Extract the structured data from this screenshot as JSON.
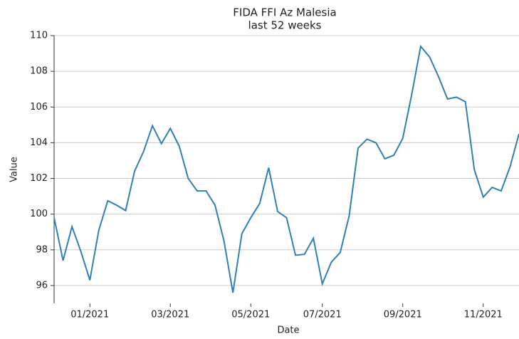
{
  "chart_data": {
    "type": "line",
    "title": "FIDA FFI Az Malesia",
    "subtitle": "last 52 weeks",
    "x_label": "Date",
    "y_label": "Value",
    "categories": [
      null,
      null,
      null,
      null,
      "01/2021",
      null,
      null,
      null,
      null,
      null,
      null,
      null,
      null,
      "03/2021",
      null,
      null,
      null,
      null,
      null,
      null,
      null,
      null,
      "05/2021",
      null,
      null,
      null,
      null,
      null,
      null,
      null,
      "07/2021",
      null,
      null,
      null,
      null,
      null,
      null,
      null,
      null,
      "09/2021",
      null,
      null,
      null,
      null,
      null,
      null,
      null,
      null,
      "11/2021",
      null,
      null,
      null,
      null
    ],
    "series": [
      {
        "name": "Value",
        "color": "#2f7fb8",
        "values": [
          99.8,
          97.4,
          99.3,
          97.9,
          96.3,
          99.1,
          100.75,
          100.5,
          100.2,
          102.4,
          103.5,
          104.95,
          103.95,
          104.8,
          103.8,
          102.0,
          101.3,
          101.3,
          100.5,
          98.5,
          95.6,
          98.9,
          99.8,
          100.6,
          102.6,
          100.15,
          99.8,
          97.7,
          97.75,
          98.65,
          96.1,
          97.3,
          97.85,
          99.9,
          103.7,
          104.2,
          104.0,
          103.1,
          103.3,
          104.25,
          106.7,
          109.4,
          108.8,
          107.7,
          106.45,
          106.55,
          106.3,
          102.5,
          100.95,
          101.5,
          101.3,
          102.65,
          104.5
        ]
      }
    ],
    "ylim": [
      95,
      110
    ],
    "yticks": [
      96,
      98,
      100,
      102,
      104,
      106,
      108,
      110
    ],
    "grid": true
  }
}
